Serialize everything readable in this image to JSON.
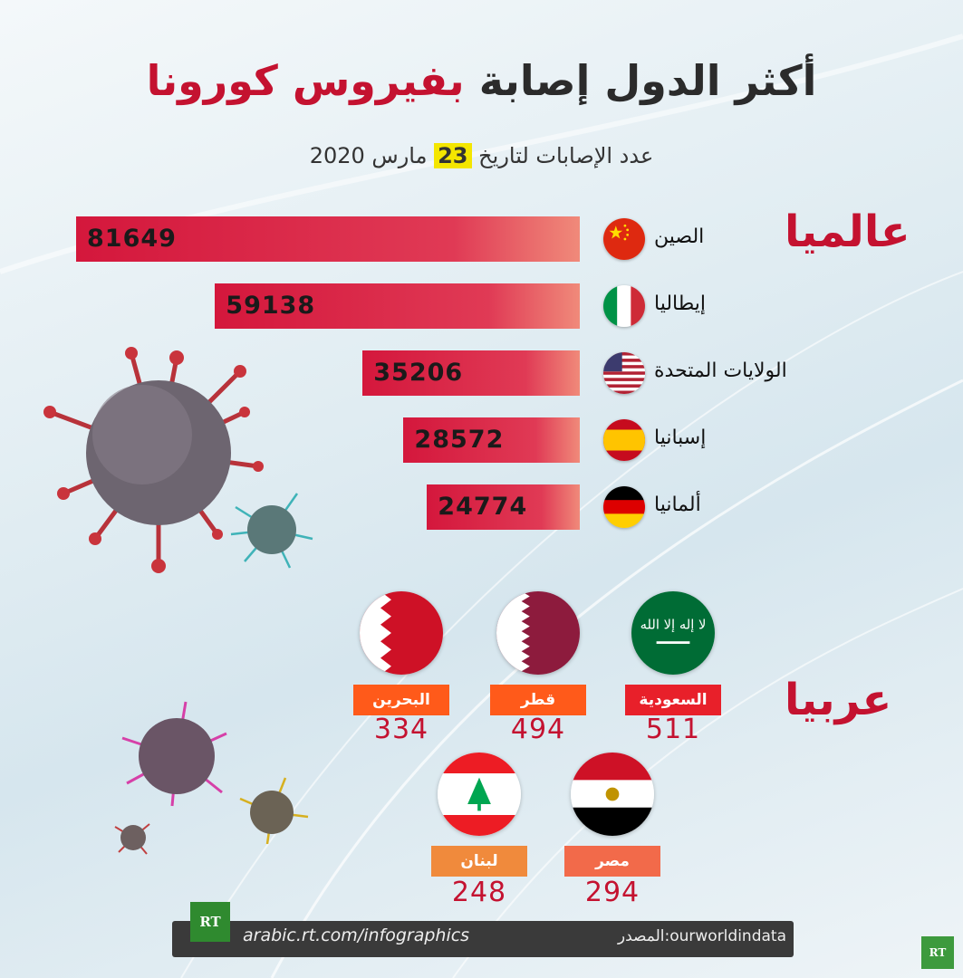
{
  "title": {
    "part1": "أكثر الدول إصابة",
    "part2": "بفيروس كورونا"
  },
  "subtitle": {
    "before": "عدد الإصابات لتاريخ",
    "day": "23",
    "after": "مارس 2020"
  },
  "sections": {
    "global": "عالميا",
    "arab": "عربيا"
  },
  "colors": {
    "accent_red": "#c41230",
    "bar_start": "#d4173c",
    "bar_end": "#f08a7a",
    "label_orange": "#ff5a1a",
    "label_red": "#e8202a",
    "label_light_orange": "#f08a3c",
    "highlight_yellow": "#f4e600"
  },
  "chart_data": [
    {
      "type": "bar",
      "orientation": "horizontal",
      "categories": [
        "الصين",
        "إيطاليا",
        "الولايات المتحدة",
        "إسبانيا",
        "ألمانيا"
      ],
      "values": [
        81649,
        59138,
        35206,
        28572,
        24774
      ],
      "value_labels": [
        "81649",
        "59138",
        "35206",
        "28572",
        "24774"
      ],
      "flags": [
        "china-flag-icon",
        "italy-flag-icon",
        "usa-flag-icon",
        "spain-flag-icon",
        "germany-flag-icon"
      ],
      "xlim": [
        0,
        81649
      ]
    },
    {
      "type": "table",
      "categories": [
        "السعودية",
        "قطر",
        "البحرين",
        "مصر",
        "لبنان"
      ],
      "values": [
        511,
        494,
        334,
        294,
        248
      ],
      "value_labels": [
        "511",
        "494",
        "334",
        "294",
        "248"
      ],
      "flags": [
        "saudi-flag-icon",
        "qatar-flag-icon",
        "bahrain-flag-icon",
        "egypt-flag-icon",
        "lebanon-flag-icon"
      ]
    }
  ],
  "footer": {
    "logo": "RT",
    "url": "arabic.rt.com/infographics",
    "source": "المصدر:ourworldindata",
    "corner_logo": "RT"
  }
}
